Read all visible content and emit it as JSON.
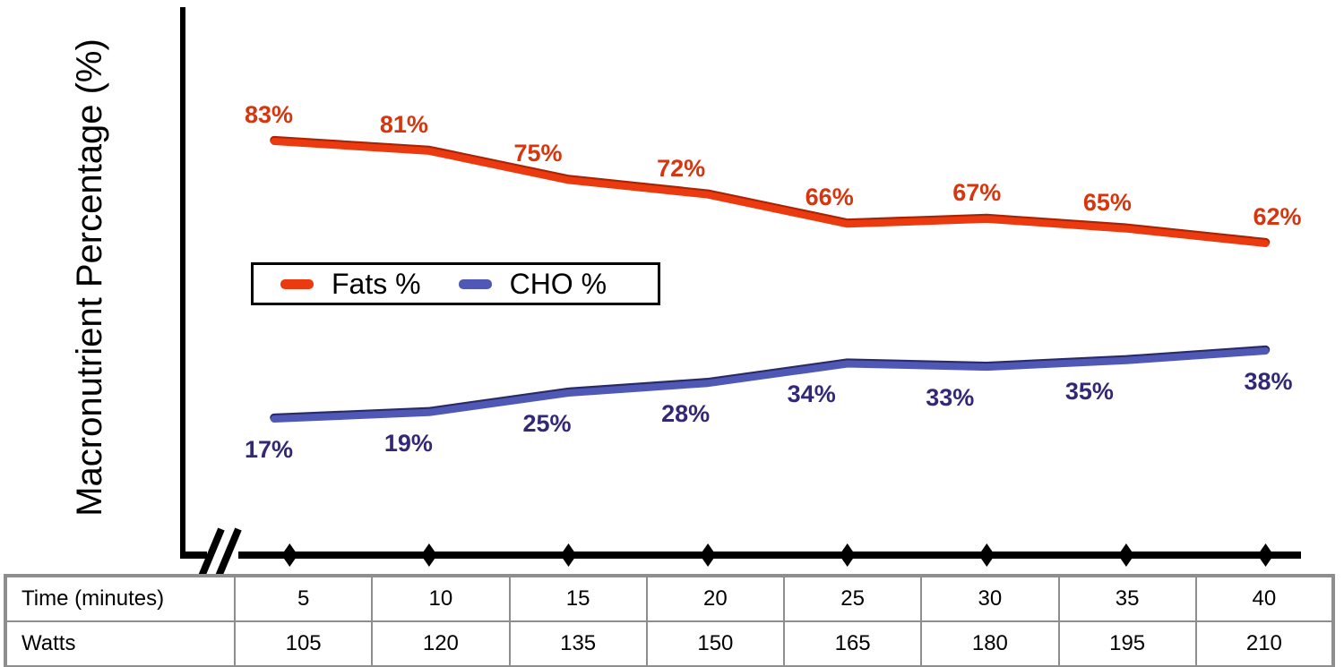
{
  "chart_data": {
    "type": "line",
    "title": "",
    "ylabel": "Macronutrient Percentage (%)",
    "x_axis": {
      "category_row_header": "Time (minutes)",
      "categories": [
        5,
        10,
        15,
        20,
        25,
        30,
        35,
        40
      ],
      "secondary_row_header": "Watts",
      "secondary_values": [
        105,
        120,
        135,
        150,
        165,
        180,
        195,
        210
      ],
      "marker_shape": "diamond",
      "axis_break": true,
      "axis_color": "#000000"
    },
    "y_axis": {
      "tick_labels": [],
      "grid": false
    },
    "series": [
      {
        "name": "Fats %",
        "values": [
          83,
          81,
          75,
          72,
          66,
          67,
          65,
          62
        ],
        "labels": [
          "83%",
          "81%",
          "75%",
          "72%",
          "66%",
          "67%",
          "65%",
          "62%"
        ],
        "color": "#EB3A0F",
        "edge_color": "#A82405",
        "label_color": "#D6350E",
        "label_position": "above"
      },
      {
        "name": "CHO %",
        "values": [
          17,
          19,
          25,
          28,
          34,
          33,
          35,
          38
        ],
        "labels": [
          "17%",
          "19%",
          "25%",
          "28%",
          "34%",
          "33%",
          "35%",
          "38%"
        ],
        "color": "#4F59B5",
        "edge_color": "#292B68",
        "label_color": "#332875",
        "label_position": "below"
      }
    ],
    "legend": {
      "position": "inside-middle-left",
      "entries": [
        "Fats %",
        "CHO %"
      ]
    }
  },
  "table": {
    "border_color": "#8E8E8E",
    "rows": [
      {
        "header": "Time (minutes)",
        "values": [
          "5",
          "10",
          "15",
          "20",
          "25",
          "30",
          "35",
          "40"
        ]
      },
      {
        "header": "Watts",
        "values": [
          "105",
          "120",
          "135",
          "150",
          "165",
          "180",
          "195",
          "210"
        ]
      }
    ]
  }
}
